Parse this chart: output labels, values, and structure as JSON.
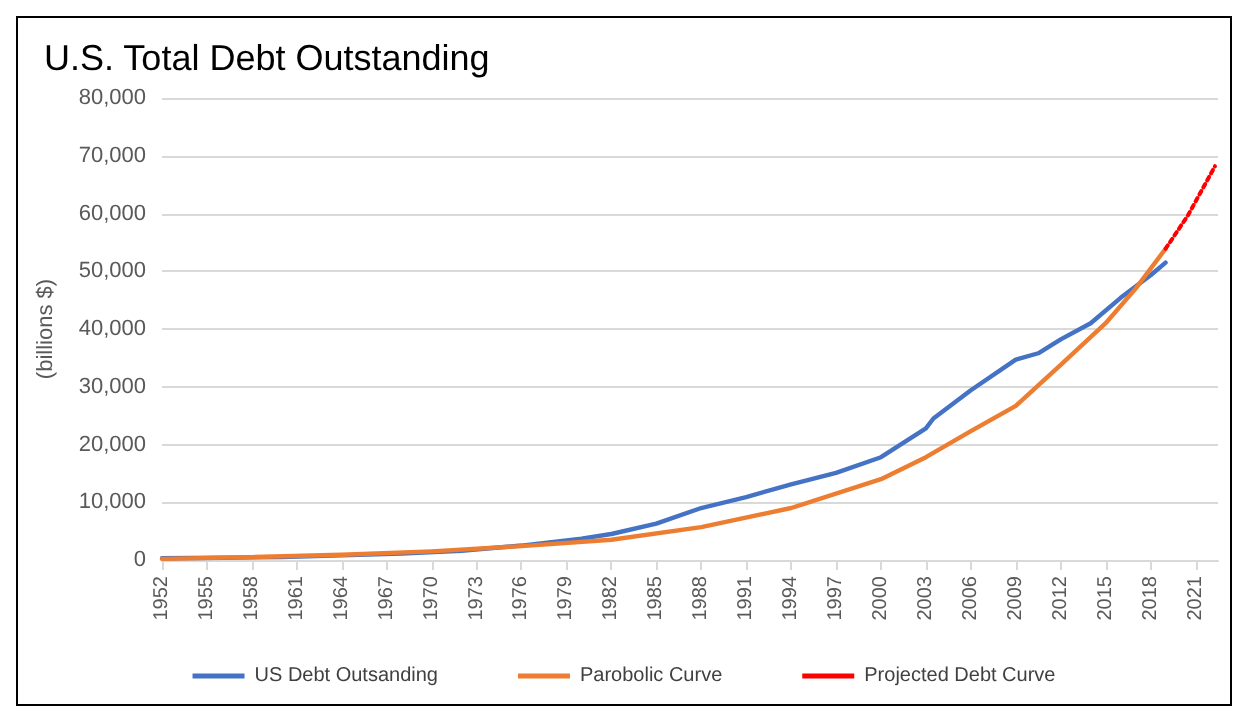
{
  "chart_data": {
    "type": "line",
    "title": "U.S. Total Debt Outstanding",
    "ylabel": "(billions $)",
    "xlim": [
      1952,
      2022.5
    ],
    "xticks": [
      1952,
      1955,
      1958,
      1961,
      1964,
      1967,
      1970,
      1973,
      1976,
      1979,
      1982,
      1985,
      1988,
      1991,
      1994,
      1997,
      2000,
      2003,
      2006,
      2009,
      2012,
      2015,
      2018,
      2021
    ],
    "ylim": [
      0,
      80000
    ],
    "yticks": [
      0,
      {
        "value": 10000,
        "label": "10,000"
      },
      {
        "value": 20000,
        "label": "20,000"
      },
      {
        "value": 30000,
        "label": "30,000"
      },
      {
        "value": 40000,
        "label": "40,000"
      },
      {
        "value": 50000,
        "label": "50,000"
      },
      {
        "value": 60000,
        "label": "60,000"
      },
      {
        "value": 70000,
        "label": "70,000"
      },
      {
        "value": 80000,
        "label": "80,000"
      }
    ],
    "grid": "y",
    "legend": "bottom",
    "marker": "none",
    "series": [
      {
        "name": "US Debt Outsanding",
        "color": "#4472c4",
        "line_style": "solid",
        "x": [
          1952,
          1956,
          1960,
          1964,
          1968,
          1972,
          1976,
          1980,
          1982,
          1985,
          1988,
          1991,
          1994,
          1997,
          2000,
          2003,
          2003.5,
          2006,
          2009,
          2010.5,
          2012,
          2014,
          2016,
          2018,
          2019
        ],
        "values": [
          300,
          400,
          500,
          800,
          1100,
          1600,
          2500,
          3700,
          4500,
          6300,
          9000,
          10900,
          13100,
          15100,
          17800,
          22800,
          24500,
          29400,
          34700,
          35800,
          38200,
          41000,
          45400,
          49300,
          51500
        ]
      },
      {
        "name": "Parobolic Curve",
        "color": "#ed7d31",
        "line_style": "solid",
        "x": [
          1952,
          1958,
          1964,
          1970,
          1976,
          1982,
          1988,
          1994,
          2000,
          2003,
          2006,
          2009,
          2012,
          2015,
          2017,
          2019
        ],
        "values": [
          200,
          500,
          900,
          1500,
          2400,
          3500,
          5700,
          9000,
          14000,
          17800,
          22300,
          26700,
          33800,
          41000,
          47000,
          53900
        ]
      },
      {
        "name": "Projected Debt Curve",
        "color": "#ff0000",
        "line_style": "dotted",
        "x": [
          2019,
          2020.5,
          2022.3
        ],
        "values": [
          53900,
          59700,
          68200
        ]
      }
    ]
  }
}
